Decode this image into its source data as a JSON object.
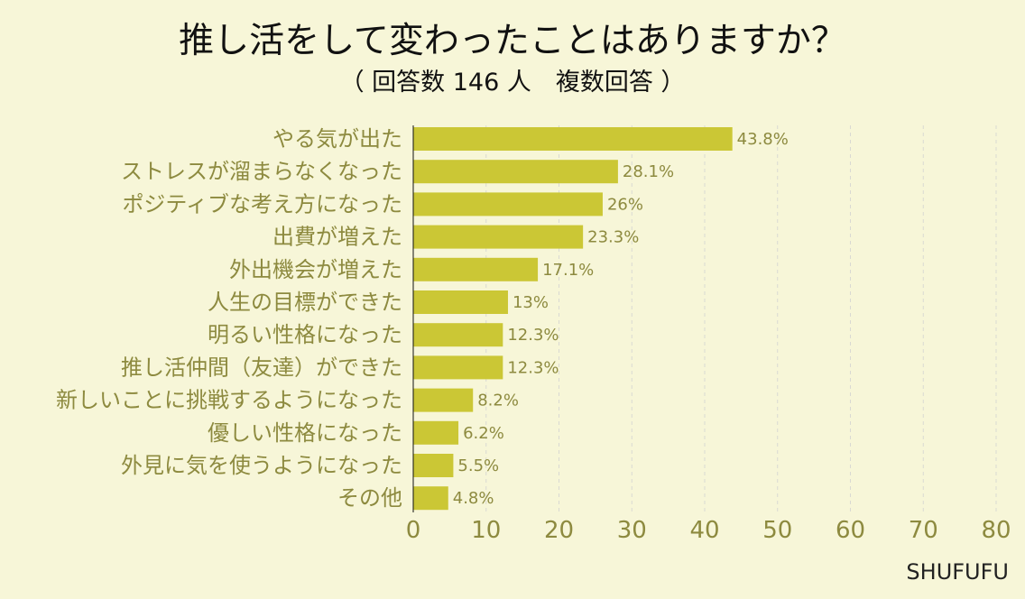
{
  "chart_data": {
    "type": "bar",
    "orientation": "horizontal",
    "title": "推し活をして変わったことはありますか？",
    "subtitle": "（ 回答数 146 人　複数回答 ）",
    "categories": [
      "やる気が出た",
      "ストレスが溜まらなくなった",
      "ポジティブな考え方になった",
      "出費が増えた",
      "外出機会が増えた",
      "人生の目標ができた",
      "明るい性格になった",
      "推し活仲間（友達）ができた",
      "新しいことに挑戦するようになった",
      "優しい性格になった",
      "外見に気を使うようになった",
      "その他"
    ],
    "values": [
      43.8,
      28.1,
      26,
      23.3,
      17.1,
      13,
      12.3,
      12.3,
      8.2,
      6.2,
      5.5,
      4.8
    ],
    "value_labels": [
      "43.8%",
      "28.1%",
      "26%",
      "23.3%",
      "17.1%",
      "13%",
      "12.3%",
      "12.3%",
      "8.2%",
      "6.2%",
      "5.5%",
      "4.8%"
    ],
    "x_ticks": [
      "0",
      "10",
      "20",
      "30",
      "40",
      "50",
      "60",
      "70",
      "80"
    ],
    "xlim": [
      0,
      80
    ],
    "xlabel": "",
    "ylabel": "",
    "grid": true,
    "legend": "none",
    "brand": "SHUFUFU",
    "colors": {
      "background": "#f7f6d8",
      "bar": "#cbc735",
      "title": "#111111",
      "labels": "#8d8a3f",
      "grid": "#d9d9d2",
      "axis": "#111111",
      "brand": "#222222"
    }
  }
}
